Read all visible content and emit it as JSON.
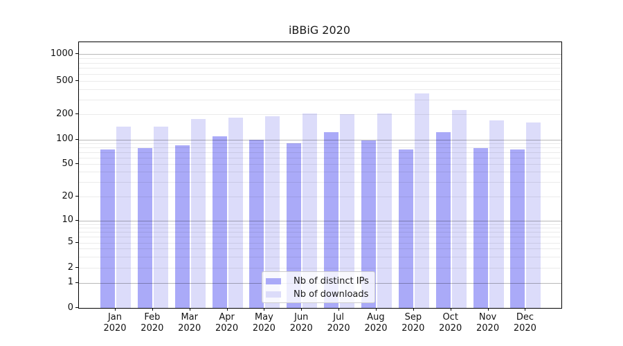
{
  "chart_data": {
    "type": "bar",
    "title": "iBBiG 2020",
    "y_scale": "symlog",
    "grid": true,
    "legend_position": "lower center",
    "categories": [
      "Jan",
      "Feb",
      "Mar",
      "Apr",
      "May",
      "Jun",
      "Jul",
      "Aug",
      "Sep",
      "Oct",
      "Nov",
      "Dec"
    ],
    "category_year": "2020",
    "y_ticks": [
      0,
      1,
      2,
      5,
      10,
      20,
      50,
      100,
      200,
      500,
      1000
    ],
    "ylim": [
      0,
      1360
    ],
    "series": [
      {
        "name": "Nb of distinct IPs",
        "color": "#aaaaf8",
        "values": [
          76,
          79,
          85,
          108,
          100,
          89,
          121,
          98,
          75,
          122,
          78,
          76
        ]
      },
      {
        "name": "Nb of downloads",
        "color": "#dcdcfa",
        "values": [
          142,
          142,
          175,
          182,
          188,
          205,
          200,
          202,
          352,
          225,
          168,
          158
        ]
      }
    ]
  }
}
